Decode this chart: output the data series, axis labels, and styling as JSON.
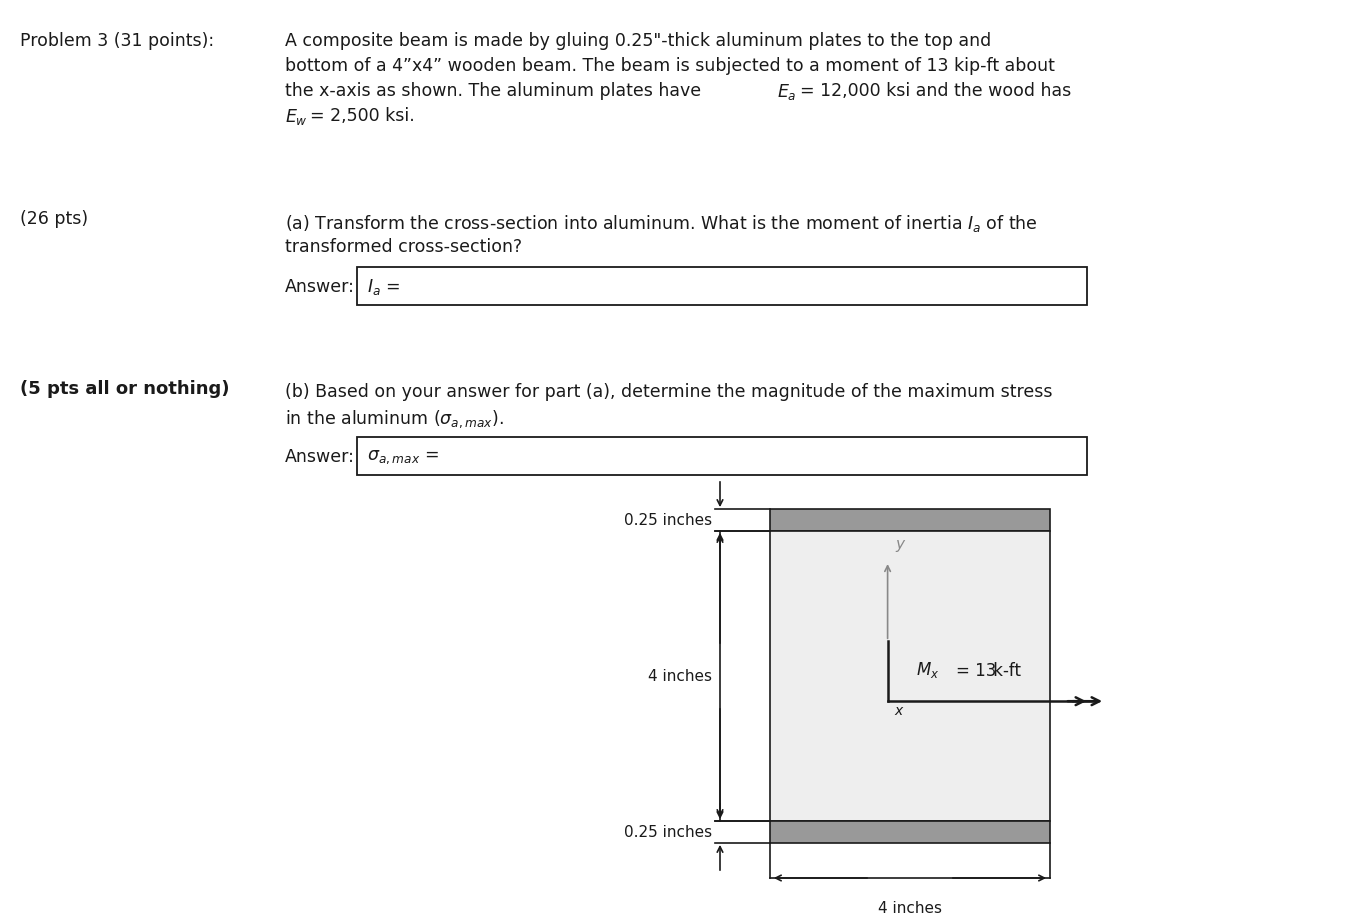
{
  "bg_color": "#ffffff",
  "fig_width": 13.51,
  "fig_height": 9.2,
  "problem_label": "Problem 3 (31 points):",
  "line1": "A composite beam is made by gluing 0.25\"-thick aluminum plates to the top and",
  "line2": "bottom of a 4”x4” wooden beam. The beam is subjected to a moment of 13 kip-ft about",
  "line3a": "the x-axis as shown. The aluminum plates have ",
  "line3b": " = 12,000 ksi and the wood has",
  "line4a": " = 2,500 ksi.",
  "pts26_label": "(26 pts)",
  "part_a_line1a": "(a) Transform the cross-section into aluminum. What is the moment of inertia ",
  "part_a_line1b": " of the",
  "part_a_line2": "transformed cross-section?",
  "pts5_label": "(5 pts all or nothing)",
  "part_b_line1": "(b) Based on your answer for part (a), determine the magnitude of the maximum stress",
  "part_b_line2a": "in the aluminum (",
  "part_b_line2b": ").",
  "dim_top": "0.25 inches",
  "dim_mid": "4 inches",
  "dim_bot": "0.25 inches",
  "dim_width": "4 inches",
  "wood_fill": "#eeeeee",
  "alum_fill": "#999999",
  "bg_color2": "#ffffff",
  "border_color": "#1a1a1a",
  "dim_color": "#1a1a1a",
  "axis_gray": "#888888",
  "text_color": "#1a1a1a",
  "fs": 12.5,
  "fs_small": 11.0
}
